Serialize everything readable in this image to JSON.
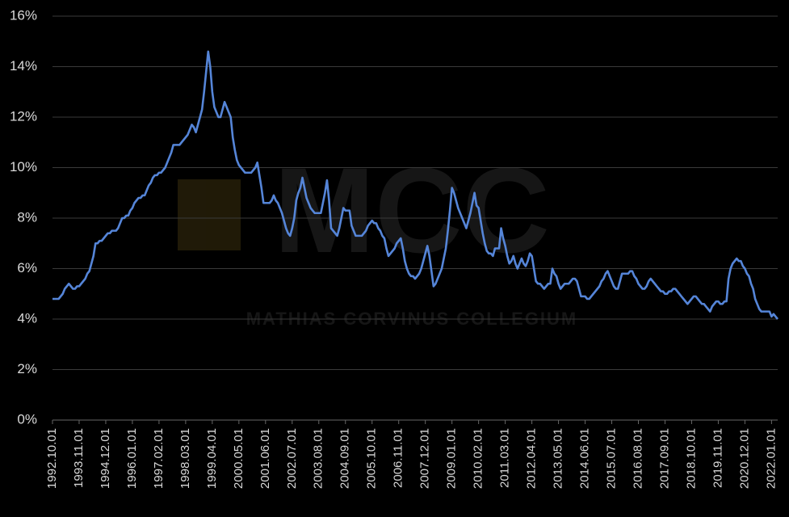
{
  "chart_data": {
    "type": "line",
    "watermark": {
      "logo": "MCC",
      "text": "MATHIAS CORVINUS COLLEGIUM"
    },
    "categories": [
      "1992.10.01",
      null,
      null,
      null,
      null,
      null,
      null,
      null,
      null,
      null,
      null,
      null,
      null,
      "1993.11.01",
      null,
      null,
      null,
      null,
      null,
      null,
      null,
      null,
      null,
      null,
      null,
      null,
      "1994.12.01",
      null,
      null,
      null,
      null,
      null,
      null,
      null,
      null,
      null,
      null,
      null,
      null,
      "1996.01.01",
      null,
      null,
      null,
      null,
      null,
      null,
      null,
      null,
      null,
      null,
      null,
      null,
      "1997.02.01",
      null,
      null,
      null,
      null,
      null,
      null,
      null,
      null,
      null,
      null,
      null,
      null,
      "1998.03.01",
      null,
      null,
      null,
      null,
      null,
      null,
      null,
      null,
      null,
      null,
      null,
      null,
      "1999.04.01",
      null,
      null,
      null,
      null,
      null,
      null,
      null,
      null,
      null,
      null,
      null,
      null,
      "2000.05.01",
      null,
      null,
      null,
      null,
      null,
      null,
      null,
      null,
      null,
      null,
      null,
      null,
      "2001.06.01",
      null,
      null,
      null,
      null,
      null,
      null,
      null,
      null,
      null,
      null,
      null,
      null,
      "2002.07.01",
      null,
      null,
      null,
      null,
      null,
      null,
      null,
      null,
      null,
      null,
      null,
      null,
      "2003.08.01",
      null,
      null,
      null,
      null,
      null,
      null,
      null,
      null,
      null,
      null,
      null,
      null,
      "2004.09.01",
      null,
      null,
      null,
      null,
      null,
      null,
      null,
      null,
      null,
      null,
      null,
      null,
      "2005.10.01",
      null,
      null,
      null,
      null,
      null,
      null,
      null,
      null,
      null,
      null,
      null,
      null,
      "2006.11.01",
      null,
      null,
      null,
      null,
      null,
      null,
      null,
      null,
      null,
      null,
      null,
      null,
      "2007.12.01",
      null,
      null,
      null,
      null,
      null,
      null,
      null,
      null,
      null,
      null,
      null,
      null,
      "2009.01.01",
      null,
      null,
      null,
      null,
      null,
      null,
      null,
      null,
      null,
      null,
      null,
      null,
      "2010.02.01",
      null,
      null,
      null,
      null,
      null,
      null,
      null,
      null,
      null,
      null,
      null,
      null,
      "2011.03.01",
      null,
      null,
      null,
      null,
      null,
      null,
      null,
      null,
      null,
      null,
      null,
      null,
      "2012.04.01",
      null,
      null,
      null,
      null,
      null,
      null,
      null,
      null,
      null,
      null,
      null,
      null,
      "2013.05.01",
      null,
      null,
      null,
      null,
      null,
      null,
      null,
      null,
      null,
      null,
      null,
      null,
      "2014.06.01",
      null,
      null,
      null,
      null,
      null,
      null,
      null,
      null,
      null,
      null,
      null,
      null,
      "2015.07.01",
      null,
      null,
      null,
      null,
      null,
      null,
      null,
      null,
      null,
      null,
      null,
      null,
      "2016.08.01",
      null,
      null,
      null,
      null,
      null,
      null,
      null,
      null,
      null,
      null,
      null,
      null,
      "2017.09.01",
      null,
      null,
      null,
      null,
      null,
      null,
      null,
      null,
      null,
      null,
      null,
      null,
      "2018.10.01",
      null,
      null,
      null,
      null,
      null,
      null,
      null,
      null,
      null,
      null,
      null,
      null,
      "2019.11.01",
      null,
      null,
      null,
      null,
      null,
      null,
      null,
      null,
      null,
      null,
      null,
      null,
      "2020.12.01",
      null,
      null,
      null,
      null,
      null,
      null,
      null,
      null,
      null,
      null,
      null,
      null,
      "2022.01.01",
      null,
      null,
      null
    ],
    "series": [
      {
        "color": "#5585d8",
        "values": [
          4.8,
          4.8,
          4.8,
          4.8,
          4.9,
          5.0,
          5.2,
          5.3,
          5.4,
          5.3,
          5.2,
          5.2,
          5.3,
          5.3,
          5.4,
          5.5,
          5.6,
          5.8,
          5.9,
          6.2,
          6.5,
          7.0,
          7.0,
          7.1,
          7.1,
          7.2,
          7.3,
          7.4,
          7.4,
          7.5,
          7.5,
          7.5,
          7.6,
          7.8,
          8.0,
          8.0,
          8.1,
          8.1,
          8.3,
          8.4,
          8.6,
          8.7,
          8.8,
          8.8,
          8.9,
          8.9,
          9.1,
          9.3,
          9.4,
          9.6,
          9.7,
          9.7,
          9.8,
          9.8,
          9.9,
          10.0,
          10.2,
          10.4,
          10.6,
          10.9,
          10.9,
          10.9,
          10.9,
          11.0,
          11.1,
          11.2,
          11.3,
          11.5,
          11.7,
          11.6,
          11.4,
          11.7,
          12.0,
          12.3,
          13.0,
          13.8,
          14.6,
          14.0,
          13.0,
          12.4,
          12.2,
          12.0,
          12.0,
          12.3,
          12.6,
          12.4,
          12.2,
          12.0,
          11.2,
          10.7,
          10.3,
          10.1,
          10.0,
          9.9,
          9.8,
          9.8,
          9.8,
          9.8,
          9.9,
          10.0,
          10.2,
          9.7,
          9.2,
          8.6,
          8.6,
          8.6,
          8.6,
          8.7,
          8.9,
          8.7,
          8.6,
          8.4,
          8.2,
          7.9,
          7.6,
          7.4,
          7.3,
          7.6,
          8.0,
          8.7,
          9.0,
          9.2,
          9.6,
          9.2,
          8.8,
          8.6,
          8.4,
          8.3,
          8.2,
          8.2,
          8.2,
          8.2,
          8.6,
          9.0,
          9.5,
          8.7,
          7.6,
          7.5,
          7.4,
          7.3,
          7.6,
          8.0,
          8.4,
          8.3,
          8.3,
          8.3,
          7.7,
          7.5,
          7.3,
          7.3,
          7.3,
          7.3,
          7.4,
          7.5,
          7.7,
          7.8,
          7.9,
          7.8,
          7.8,
          7.6,
          7.5,
          7.3,
          7.2,
          6.8,
          6.5,
          6.6,
          6.7,
          6.8,
          7.0,
          7.1,
          7.2,
          6.8,
          6.3,
          6.0,
          5.8,
          5.7,
          5.7,
          5.6,
          5.7,
          5.8,
          6.0,
          6.3,
          6.6,
          6.9,
          6.5,
          5.9,
          5.3,
          5.4,
          5.6,
          5.8,
          6.0,
          6.4,
          6.8,
          7.5,
          8.3,
          9.2,
          9.0,
          8.7,
          8.4,
          8.2,
          8.0,
          7.8,
          7.6,
          7.9,
          8.2,
          8.6,
          9.0,
          8.5,
          8.4,
          7.9,
          7.4,
          7.0,
          6.7,
          6.6,
          6.6,
          6.5,
          6.8,
          6.8,
          6.8,
          7.6,
          7.2,
          6.9,
          6.5,
          6.2,
          6.3,
          6.5,
          6.2,
          6.0,
          6.2,
          6.4,
          6.2,
          6.1,
          6.3,
          6.6,
          6.5,
          6.0,
          5.5,
          5.4,
          5.4,
          5.3,
          5.2,
          5.3,
          5.4,
          5.4,
          6.0,
          5.8,
          5.7,
          5.4,
          5.2,
          5.3,
          5.4,
          5.4,
          5.4,
          5.5,
          5.6,
          5.6,
          5.5,
          5.2,
          4.9,
          4.9,
          4.9,
          4.8,
          4.8,
          4.9,
          5.0,
          5.1,
          5.2,
          5.3,
          5.5,
          5.6,
          5.8,
          5.9,
          5.7,
          5.5,
          5.3,
          5.2,
          5.2,
          5.5,
          5.8,
          5.8,
          5.8,
          5.8,
          5.9,
          5.9,
          5.7,
          5.6,
          5.4,
          5.3,
          5.2,
          5.2,
          5.3,
          5.5,
          5.6,
          5.5,
          5.4,
          5.3,
          5.2,
          5.1,
          5.1,
          5.0,
          5.0,
          5.1,
          5.1,
          5.2,
          5.2,
          5.1,
          5.0,
          4.9,
          4.8,
          4.7,
          4.6,
          4.7,
          4.8,
          4.9,
          4.9,
          4.8,
          4.7,
          4.6,
          4.6,
          4.5,
          4.4,
          4.3,
          4.5,
          4.6,
          4.7,
          4.7,
          4.6,
          4.6,
          4.7,
          4.7,
          5.6,
          6.0,
          6.2,
          6.3,
          6.4,
          6.3,
          6.3,
          6.1,
          6.0,
          5.8,
          5.7,
          5.4,
          5.2,
          4.8,
          4.6,
          4.4,
          4.3,
          4.3,
          4.3,
          4.3,
          4.3,
          4.1,
          4.2,
          4.1,
          4.0
        ]
      }
    ],
    "ylim": [
      0,
      16
    ],
    "yticks": [
      {
        "value": 0,
        "label": "0%"
      },
      {
        "value": 2,
        "label": "2%"
      },
      {
        "value": 4,
        "label": "4%"
      },
      {
        "value": 6,
        "label": "6%"
      },
      {
        "value": 8,
        "label": "8%"
      },
      {
        "value": 10,
        "label": "10%"
      },
      {
        "value": 12,
        "label": "12%"
      },
      {
        "value": 14,
        "label": "14%"
      },
      {
        "value": 16,
        "label": "16%"
      }
    ],
    "grid": true
  }
}
